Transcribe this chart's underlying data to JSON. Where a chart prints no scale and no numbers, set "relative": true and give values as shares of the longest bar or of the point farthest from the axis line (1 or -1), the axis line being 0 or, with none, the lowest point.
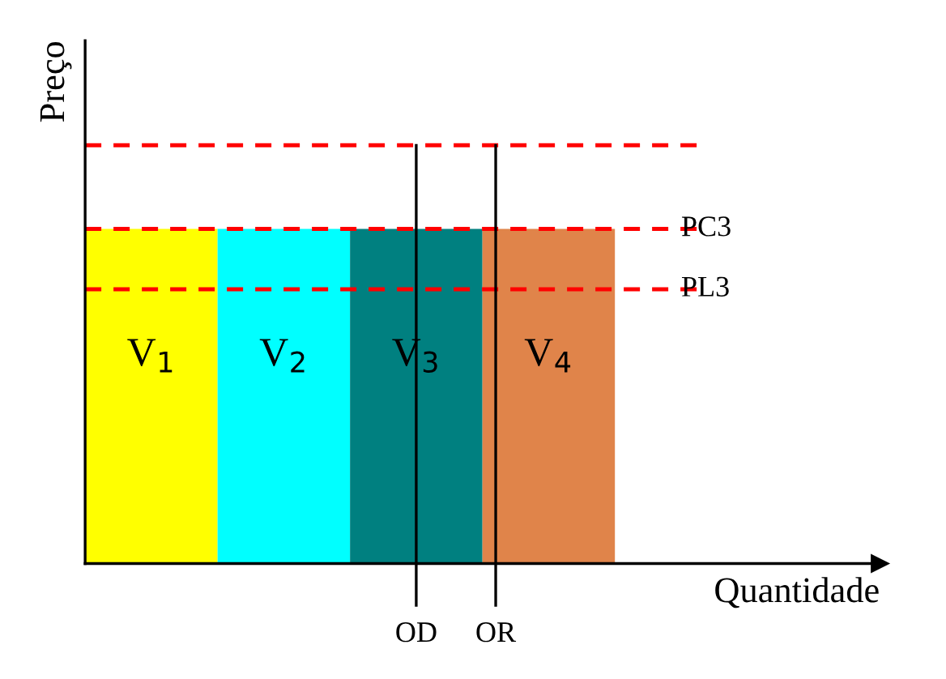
{
  "chart_data": {
    "type": "bar",
    "relative": true,
    "xlabel": "Quantidade",
    "ylabel": "Preço",
    "categories": [
      "V$_{1}$",
      "V$_{2}$",
      "V$_{3}$",
      "V$_{4}$"
    ],
    "values": [
      1,
      1,
      1,
      1
    ],
    "colors": [
      "#ffff00",
      "#00ffff",
      "#008080",
      "#e0844a"
    ],
    "ref_lines": [
      {
        "axis": "y",
        "value": 1.25,
        "label": null,
        "color": "#ff0000",
        "line_style": "dashed"
      },
      {
        "axis": "y",
        "value": 1.0,
        "label": "PC3",
        "color": "#ff0000",
        "line_style": "dashed"
      },
      {
        "axis": "y",
        "value": 0.82,
        "label": "PL3",
        "color": "#ff0000",
        "line_style": "dashed"
      }
    ],
    "annotations": [
      "OD",
      "OR"
    ],
    "legend": false
  }
}
